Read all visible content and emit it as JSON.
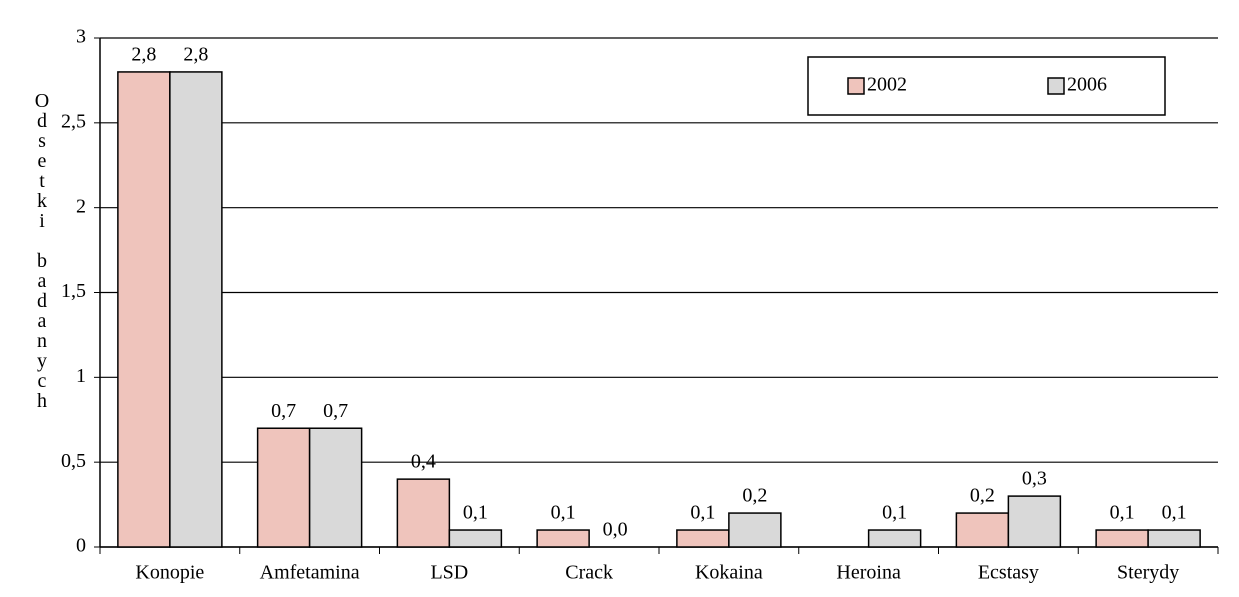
{
  "chart_data": {
    "type": "bar",
    "y_label": "Odsetki badanych",
    "categories": [
      "Konopie",
      "Amfetamina",
      "LSD",
      "Crack",
      "Kokaina",
      "Heroina",
      "Ecstasy",
      "Sterydy"
    ],
    "series": [
      {
        "name": "2002",
        "color": "#efc4bc",
        "values": [
          2.8,
          0.7,
          0.4,
          0.1,
          0.1,
          null,
          0.2,
          0.1
        ],
        "value_labels": [
          "2,8",
          "0,7",
          "0,4",
          "0,1",
          "0,1",
          null,
          "0,2",
          "0,1"
        ]
      },
      {
        "name": "2006",
        "color": "#d9d9d9",
        "values": [
          2.8,
          0.7,
          0.1,
          0.0,
          0.2,
          0.1,
          0.3,
          0.1
        ],
        "value_labels": [
          "2,8",
          "0,7",
          "0,1",
          "0,0",
          "0,2",
          "0,1",
          "0,3",
          "0,1"
        ]
      }
    ],
    "ylim": [
      0,
      3
    ],
    "yticks": [
      0,
      {
        "value": 0.5,
        "label": "0,5"
      },
      1,
      {
        "value": 1.5,
        "label": "1,5"
      },
      2,
      {
        "value": 2.5,
        "label": "2,5"
      },
      3
    ],
    "grid": true,
    "legend": "upper right"
  }
}
